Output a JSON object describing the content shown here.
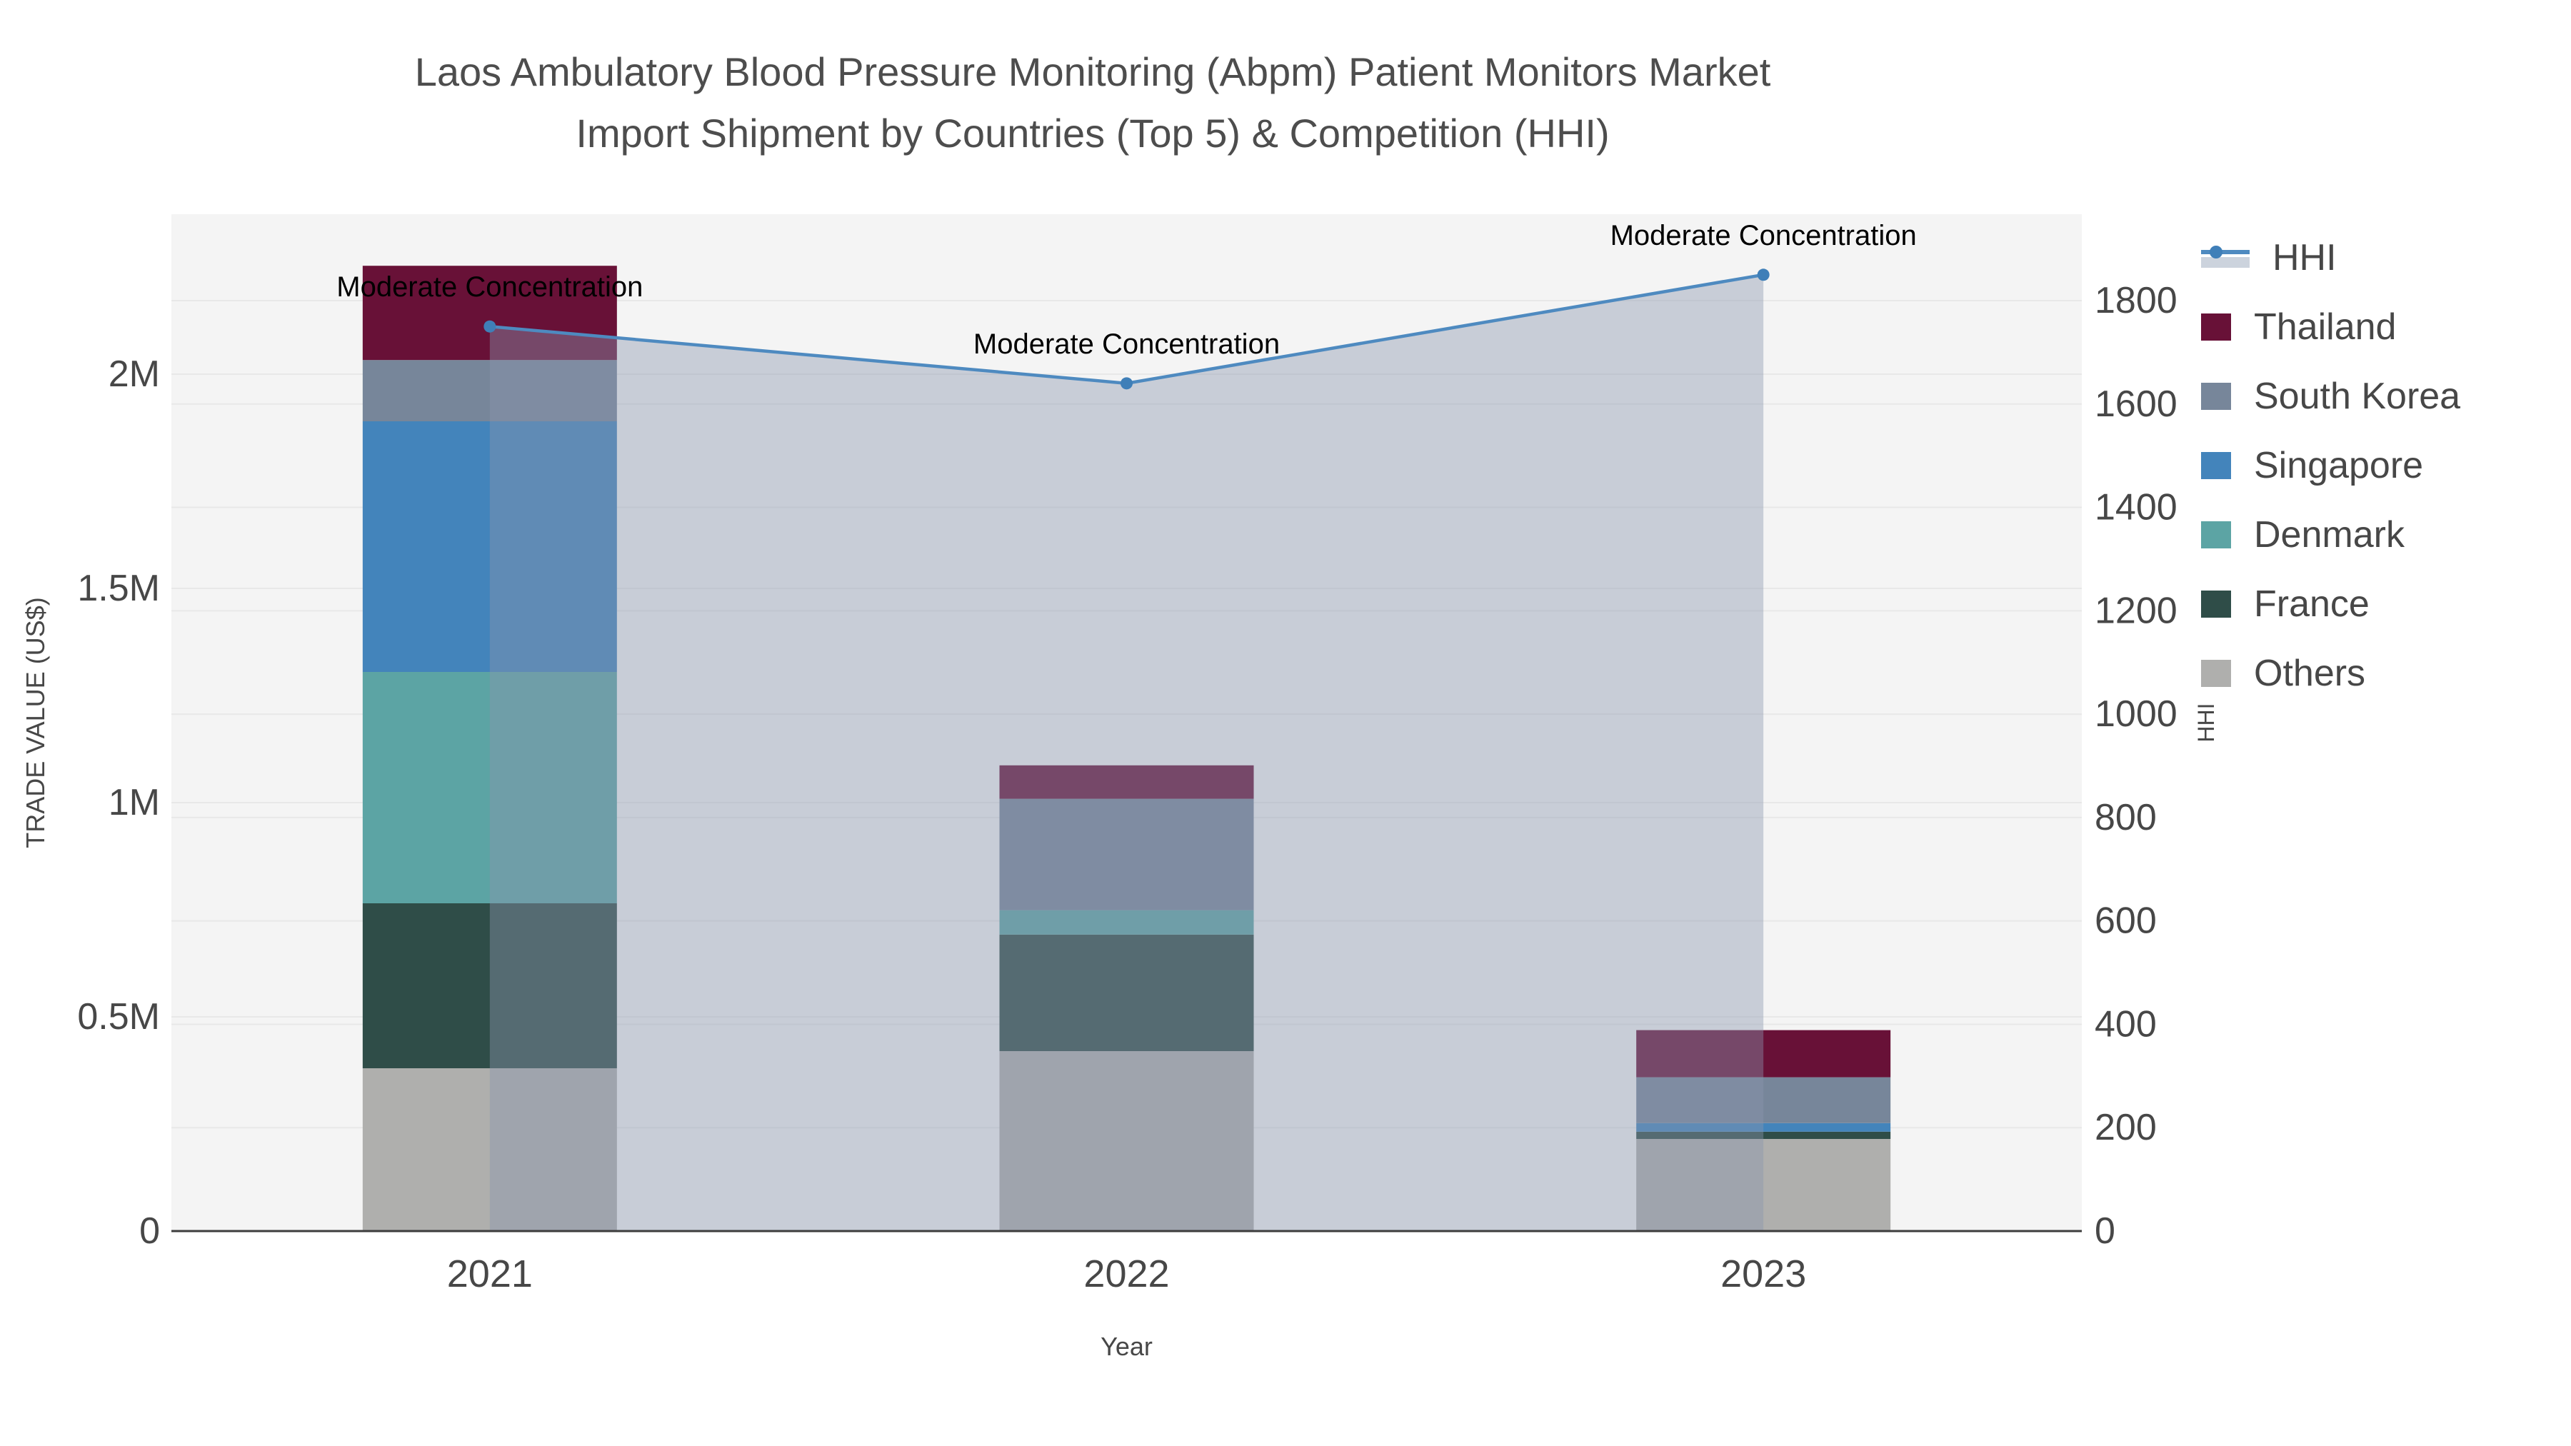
{
  "title": {
    "line1": "Laos Ambulatory Blood Pressure Monitoring (Abpm) Patient Monitors Market",
    "line2": "Import Shipment by Countries (Top 5) & Competition (HHI)"
  },
  "colors": {
    "background": "#ffffff",
    "plot_bg": "#f4f4f4",
    "grid": "#e8e8e8",
    "axis_line": "#3d3d3d",
    "tick_text": "#474747",
    "title_text": "#4d4d4d",
    "annotation_text": "#000000",
    "hhi_line": "#4e8ac0",
    "hhi_marker": "#3f7fb8",
    "hhi_fill": "rgba(139,151,175,0.42)"
  },
  "chart_data": {
    "type": "bar+line",
    "subtype": "stacked bars (left axis) with HHI line + area fill (right axis)",
    "categories": [
      "2021",
      "2022",
      "2023"
    ],
    "series": [
      {
        "name": "Others",
        "color": "#afafad",
        "values": [
          380000,
          420000,
          215000
        ]
      },
      {
        "name": "France",
        "color": "#2f4d48",
        "values": [
          385000,
          272000,
          17000
        ]
      },
      {
        "name": "Denmark",
        "color": "#5ca4a4",
        "values": [
          540000,
          57000,
          0
        ]
      },
      {
        "name": "Singapore",
        "color": "#4384bb",
        "values": [
          585000,
          0,
          20000
        ]
      },
      {
        "name": "South Korea",
        "color": "#77869a",
        "values": [
          143000,
          260000,
          107000
        ]
      },
      {
        "name": "Thailand",
        "color": "#681137",
        "values": [
          220000,
          78000,
          110000
        ]
      }
    ],
    "bar_totals": [
      2253000,
      1087000,
      469000
    ],
    "hhi": {
      "name": "HHI",
      "values": [
        1750,
        1640,
        1850
      ],
      "annotations": [
        "Moderate Concentration",
        "Moderate Concentration",
        "Moderate Concentration"
      ]
    },
    "axes": {
      "x": {
        "label": "Year",
        "tick_labels": [
          "2021",
          "2022",
          "2023"
        ]
      },
      "y_left": {
        "label": "TRADE VALUE (US$)",
        "ticks": [
          {
            "value": 0,
            "label": "0"
          },
          {
            "value": 500000,
            "label": "0.5M"
          },
          {
            "value": 1000000,
            "label": "1M"
          },
          {
            "value": 1500000,
            "label": "1.5M"
          },
          {
            "value": 2000000,
            "label": "2M"
          }
        ],
        "range": [
          0,
          2373000
        ]
      },
      "y_right": {
        "label": "HHI",
        "ticks": [
          {
            "value": 0,
            "label": "0"
          },
          {
            "value": 200,
            "label": "200"
          },
          {
            "value": 400,
            "label": "400"
          },
          {
            "value": 600,
            "label": "600"
          },
          {
            "value": 800,
            "label": "800"
          },
          {
            "value": 1000,
            "label": "1000"
          },
          {
            "value": 1200,
            "label": "1200"
          },
          {
            "value": 1400,
            "label": "1400"
          },
          {
            "value": 1600,
            "label": "1600"
          },
          {
            "value": 1800,
            "label": "1800"
          }
        ],
        "range": [
          0,
          1968
        ]
      }
    },
    "legend": [
      {
        "label": "HHI",
        "type": "line"
      },
      {
        "label": "Thailand",
        "type": "swatch",
        "color": "#681137"
      },
      {
        "label": "South Korea",
        "type": "swatch",
        "color": "#77869a"
      },
      {
        "label": "Singapore",
        "type": "swatch",
        "color": "#4384bb"
      },
      {
        "label": "Denmark",
        "type": "swatch",
        "color": "#5ca4a4"
      },
      {
        "label": "France",
        "type": "swatch",
        "color": "#2f4d48"
      },
      {
        "label": "Others",
        "type": "swatch",
        "color": "#afafad"
      }
    ]
  }
}
